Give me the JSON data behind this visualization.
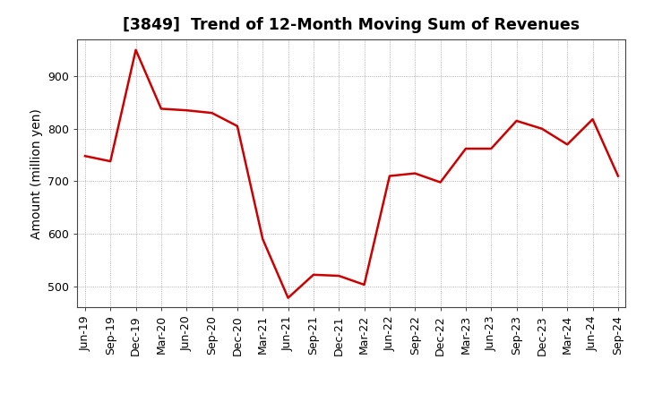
{
  "title": "[3849]  Trend of 12-Month Moving Sum of Revenues",
  "ylabel": "Amount (million yen)",
  "line_color": "#cc0000",
  "background_color": "#ffffff",
  "plot_bg_color": "#ffffff",
  "grid_color": "#999999",
  "x_labels": [
    "Jun-19",
    "Sep-19",
    "Dec-19",
    "Mar-20",
    "Jun-20",
    "Sep-20",
    "Dec-20",
    "Mar-21",
    "Jun-21",
    "Sep-21",
    "Dec-21",
    "Mar-22",
    "Jun-22",
    "Sep-22",
    "Dec-22",
    "Mar-23",
    "Jun-23",
    "Sep-23",
    "Dec-23",
    "Mar-24",
    "Jun-24",
    "Sep-24"
  ],
  "values": [
    748,
    738,
    950,
    838,
    835,
    830,
    805,
    590,
    478,
    522,
    520,
    503,
    710,
    715,
    698,
    762,
    762,
    815,
    800,
    770,
    818,
    710
  ],
  "ylim": [
    460,
    970
  ],
  "yticks": [
    500,
    600,
    700,
    800,
    900
  ],
  "title_fontsize": 12.5,
  "label_fontsize": 10,
  "tick_fontsize": 9
}
